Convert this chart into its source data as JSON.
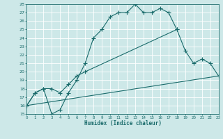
{
  "xlabel": "Humidex (Indice chaleur)",
  "xlim": [
    0,
    23
  ],
  "ylim": [
    15,
    28
  ],
  "xticks": [
    0,
    1,
    2,
    3,
    4,
    5,
    6,
    7,
    8,
    9,
    10,
    11,
    12,
    13,
    14,
    15,
    16,
    17,
    18,
    19,
    20,
    21,
    22,
    23
  ],
  "yticks": [
    15,
    16,
    17,
    18,
    19,
    20,
    21,
    22,
    23,
    24,
    25,
    26,
    27,
    28
  ],
  "bg_color": "#cde8e8",
  "grid_color": "#b8d8d8",
  "line_color": "#1a6b6b",
  "line1_x": [
    0,
    1,
    2,
    3,
    4,
    5,
    6,
    7,
    8,
    9,
    10,
    11,
    12,
    13,
    14,
    15,
    16,
    17,
    18
  ],
  "line1_y": [
    16.0,
    17.5,
    18.0,
    15.0,
    15.5,
    17.5,
    19.0,
    21.0,
    24.0,
    25.0,
    26.5,
    27.0,
    27.0,
    28.0,
    27.0,
    27.0,
    27.5,
    27.0,
    25.0
  ],
  "line2_x": [
    0,
    1,
    2,
    3,
    4,
    5,
    6,
    7,
    18,
    19,
    20,
    21,
    22,
    23
  ],
  "line2_y": [
    16.0,
    17.5,
    18.0,
    18.0,
    17.5,
    18.5,
    19.5,
    20.0,
    25.0,
    22.5,
    21.0,
    21.5,
    21.0,
    19.5
  ],
  "line3_x": [
    0,
    23
  ],
  "line3_y": [
    16.0,
    19.5
  ]
}
